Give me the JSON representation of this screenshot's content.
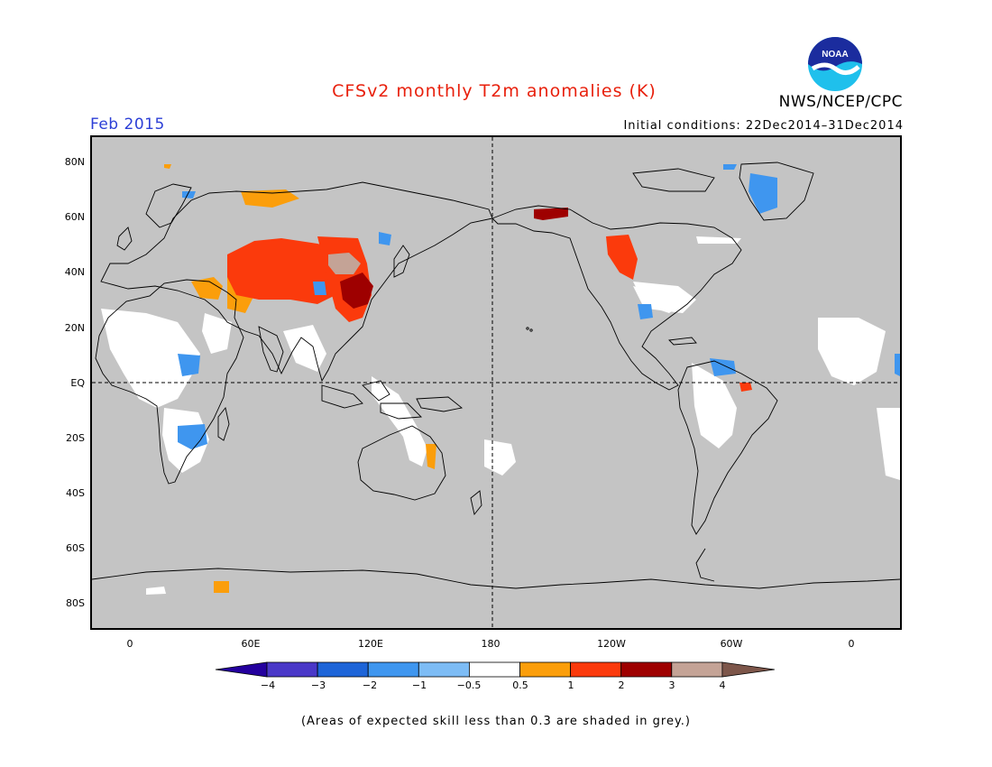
{
  "title": "CFSv2 monthly T2m anomalies (K)",
  "agency": "NWS/NCEP/CPC",
  "logo_text": "NOAA",
  "valid_month": "Feb 2015",
  "initial_conditions": "Initial conditions: 22Dec2014–31Dec2014",
  "footnote": "(Areas of expected skill less than 0.3 are shaded in grey.)",
  "latitude_labels": [
    "80N",
    "60N",
    "40N",
    "20N",
    "EQ",
    "20S",
    "40S",
    "60S",
    "80S"
  ],
  "longitude_labels": [
    "0",
    "60E",
    "120E",
    "180",
    "120W",
    "60W",
    "0"
  ],
  "colorbar": {
    "tick_labels": [
      "−4",
      "−3",
      "−2",
      "−1",
      "−0.5",
      "0.5",
      "1",
      "2",
      "3",
      "4"
    ],
    "colors": [
      "#24009e",
      "#4a38c8",
      "#1d64d8",
      "#3f96ef",
      "#7dbcf5",
      "#ffffff",
      "#fb9e0b",
      "#fb3a0c",
      "#9e0000",
      "#c4a396",
      "#7d564a"
    ]
  }
}
